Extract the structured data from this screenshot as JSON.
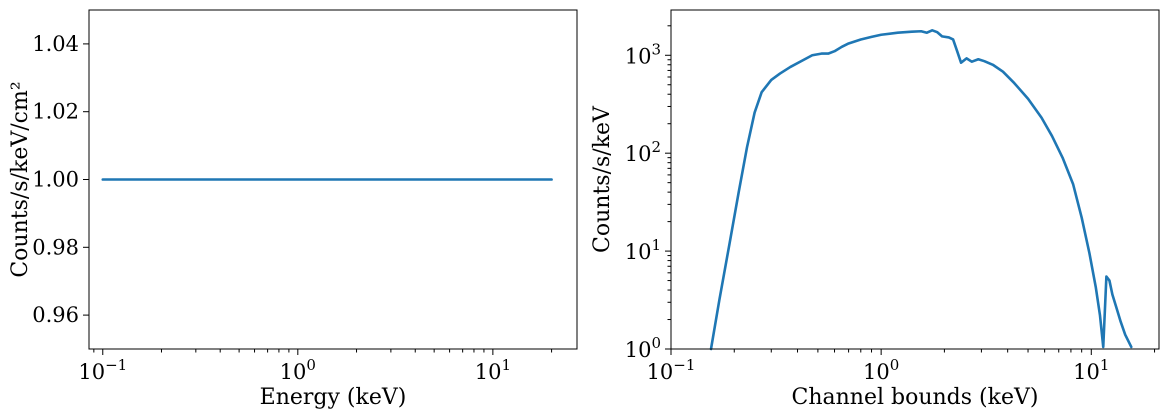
{
  "chart_data": [
    {
      "type": "line",
      "xlabel": "Energy (keV)",
      "ylabel": "Counts/s/keV/cm²",
      "xscale": "log",
      "yscale": "linear",
      "xlim": [
        0.085,
        27
      ],
      "ylim": [
        0.95,
        1.05
      ],
      "xticks": [
        {
          "value": 0.1,
          "base": "10",
          "exp": "−1"
        },
        {
          "value": 1,
          "base": "10",
          "exp": "0"
        },
        {
          "value": 10,
          "base": "10",
          "exp": "1"
        }
      ],
      "yticks": [
        {
          "value": 0.96,
          "label": "0.96"
        },
        {
          "value": 0.98,
          "label": "0.98"
        },
        {
          "value": 1.0,
          "label": "1.00"
        },
        {
          "value": 1.02,
          "label": "1.02"
        },
        {
          "value": 1.04,
          "label": "1.04"
        }
      ],
      "series": [
        {
          "color": "#1f77b4",
          "x": [
            0.1,
            20
          ],
          "y": [
            1.0,
            1.0
          ]
        }
      ]
    },
    {
      "type": "line",
      "xlabel": "Channel bounds (keV)",
      "ylabel": "Counts/s/keV",
      "xscale": "log",
      "yscale": "log",
      "xlim": [
        0.1,
        21
      ],
      "ylim": [
        1,
        2900
      ],
      "xticks": [
        {
          "value": 0.1,
          "base": "10",
          "exp": "−1"
        },
        {
          "value": 1,
          "base": "10",
          "exp": "0"
        },
        {
          "value": 10,
          "base": "10",
          "exp": "1"
        }
      ],
      "yticks": [
        {
          "value": 1,
          "base": "10",
          "exp": "0"
        },
        {
          "value": 10,
          "base": "10",
          "exp": "1"
        },
        {
          "value": 100,
          "base": "10",
          "exp": "2"
        },
        {
          "value": 1000,
          "base": "10",
          "exp": "3"
        }
      ],
      "series": [
        {
          "color": "#1f77b4",
          "x": [
            0.155,
            0.17,
            0.19,
            0.21,
            0.23,
            0.25,
            0.27,
            0.3,
            0.33,
            0.37,
            0.42,
            0.47,
            0.52,
            0.56,
            0.6,
            0.65,
            0.7,
            0.8,
            0.9,
            1.0,
            1.2,
            1.4,
            1.55,
            1.65,
            1.75,
            1.85,
            1.95,
            2.1,
            2.2,
            2.3,
            2.4,
            2.55,
            2.7,
            2.9,
            3.1,
            3.4,
            3.8,
            4.3,
            5.0,
            5.8,
            6.5,
            7.3,
            8.2,
            9.0,
            9.8,
            10.5,
            11.0,
            11.4,
            11.8,
            12.2,
            12.6,
            13.2,
            13.8,
            14.5,
            15.5
          ],
          "y": [
            1.0,
            3.2,
            12,
            40,
            115,
            260,
            420,
            560,
            650,
            760,
            880,
            1000,
            1040,
            1040,
            1100,
            1220,
            1320,
            1450,
            1540,
            1620,
            1700,
            1740,
            1760,
            1700,
            1800,
            1720,
            1560,
            1520,
            1450,
            1100,
            840,
            930,
            860,
            910,
            870,
            800,
            680,
            520,
            360,
            230,
            150,
            90,
            48,
            22,
            9.5,
            4.3,
            2.2,
            1.05,
            5.5,
            5.0,
            3.6,
            2.6,
            1.9,
            1.4,
            1.05
          ]
        }
      ]
    }
  ]
}
